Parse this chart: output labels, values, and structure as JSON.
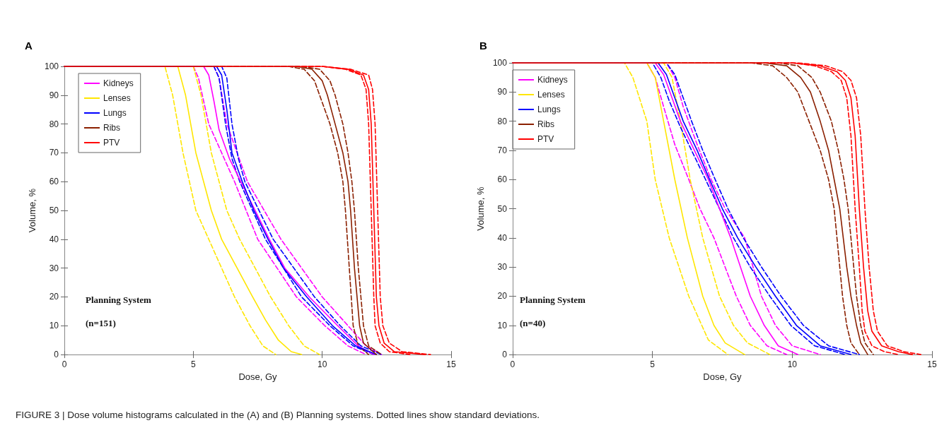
{
  "chart_data": [
    {
      "type": "line",
      "title": "A",
      "xlabel": "Dose, Gy",
      "ylabel": "Volume, %",
      "xlim": [
        0,
        15
      ],
      "xticks": [
        0,
        5,
        10,
        15
      ],
      "ylim": [
        0,
        100
      ],
      "yticks": [
        0,
        10,
        20,
        30,
        40,
        50,
        60,
        70,
        80,
        90,
        100
      ],
      "grid": false,
      "legend": "top left",
      "marker": "none",
      "line_style": "solid",
      "annotations": [
        "Planning System",
        "(n=151)",
        "FIGURE 3 | Dose volume histograms calculated in the (A) and (B) Planning systems. Dotted lines show standard deviations."
      ],
      "series": [
        {
          "name": "Kidneys",
          "color": "#ff00ff",
          "x": [
            0,
            5.4,
            5.6,
            5.8,
            6.0,
            6.4,
            6.9,
            7.4,
            7.95,
            8.55,
            9.5,
            10.6,
            11.4,
            12.0
          ],
          "values": [
            100,
            100,
            97,
            88,
            78,
            68,
            59,
            50,
            40,
            30,
            20,
            10,
            3,
            0
          ]
        },
        {
          "name": "Lenses",
          "color": "#ffe600",
          "x": [
            0,
            4.4,
            4.7,
            5.1,
            5.7,
            6.1,
            6.7,
            7.3,
            7.8,
            8.3,
            8.8,
            9.2
          ],
          "values": [
            100,
            100,
            90,
            70,
            50,
            40,
            30,
            20,
            12,
            5,
            1,
            0
          ]
        },
        {
          "name": "Lungs",
          "color": "#0000ff",
          "x": [
            0,
            5.9,
            6.1,
            6.3,
            6.5,
            6.9,
            7.35,
            7.9,
            8.5,
            9.4,
            10.4,
            11.3,
            12.1
          ],
          "values": [
            100,
            100,
            97,
            85,
            70,
            60,
            50,
            40,
            30,
            20,
            10,
            3,
            0
          ]
        },
        {
          "name": "Ribs",
          "color": "#8b2000",
          "x": [
            0,
            9.0,
            9.6,
            10.0,
            10.2,
            10.5,
            10.8,
            11.0,
            11.1,
            11.25,
            11.45,
            11.6,
            12.1
          ],
          "values": [
            100,
            100,
            99,
            95,
            90,
            80,
            70,
            60,
            50,
            30,
            10,
            4,
            0
          ]
        },
        {
          "name": "PTV",
          "color": "#ff0000",
          "x": [
            0,
            10.0,
            11.0,
            11.6,
            11.8,
            11.9,
            12.0,
            12.1,
            12.2,
            12.4,
            12.8,
            14.0
          ],
          "values": [
            100,
            100,
            99,
            97,
            92,
            80,
            50,
            20,
            10,
            4,
            1,
            0
          ]
        },
        {
          "color": "#ff00ff",
          "line_style": "dashed",
          "x": [
            0,
            5.0,
            5.2,
            5.4,
            5.6,
            6.1,
            6.6,
            7.5,
            9.0,
            10.1,
            11.0,
            11.7
          ],
          "values": [
            100,
            100,
            96,
            88,
            80,
            70,
            60,
            40,
            20,
            10,
            3,
            0
          ]
        },
        {
          "color": "#ff00ff",
          "line_style": "dashed",
          "x": [
            0,
            5.8,
            6.0,
            6.15,
            6.3,
            6.7,
            7.1,
            8.4,
            10.0,
            11.0,
            11.7,
            12.3
          ],
          "values": [
            100,
            100,
            96,
            88,
            80,
            70,
            60,
            40,
            20,
            10,
            3,
            0
          ]
        },
        {
          "color": "#ffe600",
          "line_style": "dashed",
          "x": [
            0,
            3.9,
            4.2,
            4.6,
            5.1,
            5.6,
            6.1,
            6.6,
            7.2,
            7.7,
            8.2
          ],
          "values": [
            100,
            100,
            90,
            70,
            50,
            40,
            30,
            20,
            10,
            3,
            0
          ]
        },
        {
          "color": "#ffe600",
          "line_style": "dashed",
          "x": [
            0,
            5.0,
            5.3,
            5.7,
            6.3,
            6.8,
            7.4,
            8.0,
            8.7,
            9.3,
            9.9
          ],
          "values": [
            100,
            100,
            90,
            70,
            50,
            40,
            30,
            20,
            10,
            3,
            0
          ]
        },
        {
          "color": "#0000ff",
          "line_style": "dashed",
          "x": [
            0,
            5.8,
            6.0,
            6.25,
            6.5,
            6.8,
            7.8,
            9.2,
            10.3,
            11.2,
            12.0
          ],
          "values": [
            100,
            100,
            96,
            80,
            68,
            60,
            40,
            20,
            10,
            3,
            0
          ]
        },
        {
          "color": "#0000ff",
          "line_style": "dashed",
          "x": [
            0,
            6.1,
            6.3,
            6.5,
            6.75,
            7.0,
            8.1,
            9.7,
            10.7,
            11.5,
            12.3
          ],
          "values": [
            100,
            100,
            96,
            80,
            68,
            60,
            40,
            20,
            10,
            3,
            0
          ]
        },
        {
          "color": "#8b2000",
          "line_style": "dashed",
          "x": [
            0,
            8.7,
            9.3,
            9.7,
            9.9,
            10.3,
            10.6,
            10.8,
            10.9,
            11.05,
            11.2,
            11.4,
            11.8
          ],
          "values": [
            100,
            100,
            99,
            95,
            90,
            80,
            70,
            60,
            50,
            30,
            10,
            3,
            0
          ]
        },
        {
          "color": "#8b2000",
          "line_style": "dashed",
          "x": [
            0,
            9.2,
            9.9,
            10.3,
            10.5,
            10.8,
            11.0,
            11.15,
            11.25,
            11.4,
            11.6,
            11.8,
            12.3
          ],
          "values": [
            100,
            100,
            99,
            95,
            90,
            80,
            70,
            60,
            50,
            30,
            10,
            3,
            0
          ]
        },
        {
          "color": "#ff0000",
          "line_style": "dashed",
          "x": [
            0,
            10.0,
            10.9,
            11.5,
            11.7,
            11.8,
            11.9,
            12.0,
            12.05,
            12.25,
            12.6,
            13.4
          ],
          "values": [
            100,
            100,
            99,
            97,
            92,
            80,
            50,
            20,
            10,
            4,
            1,
            0
          ]
        },
        {
          "color": "#ff0000",
          "line_style": "dashed",
          "x": [
            0,
            10.0,
            11.1,
            11.8,
            11.95,
            12.05,
            12.15,
            12.25,
            12.35,
            12.6,
            13.1,
            14.2
          ],
          "values": [
            100,
            100,
            99,
            97,
            92,
            80,
            50,
            20,
            10,
            4,
            1,
            0
          ]
        }
      ]
    },
    {
      "type": "line",
      "title": "B",
      "xlabel": "Dose, Gy",
      "ylabel": "Volume, %",
      "xlim": [
        0,
        15
      ],
      "xticks": [
        0,
        5,
        10,
        15
      ],
      "ylim": [
        0,
        100
      ],
      "yticks": [
        0,
        10,
        20,
        30,
        40,
        50,
        60,
        70,
        80,
        90,
        100
      ],
      "grid": false,
      "legend": "top left",
      "marker": "none",
      "line_style": "solid",
      "annotations": [
        "Planning System",
        "(n=40)"
      ],
      "series": [
        {
          "name": "Kidneys",
          "color": "#ff00ff",
          "x": [
            0,
            5.1,
            5.4,
            5.7,
            6.0,
            6.5,
            7.0,
            7.4,
            7.8,
            8.15,
            8.5,
            9.0,
            9.5,
            10.2
          ],
          "values": [
            100,
            100,
            96,
            88,
            80,
            70,
            60,
            50,
            40,
            30,
            20,
            10,
            3,
            0
          ]
        },
        {
          "name": "Lenses",
          "color": "#ffe600",
          "x": [
            0,
            4.8,
            5.1,
            5.4,
            5.8,
            6.25,
            6.8,
            7.2,
            7.6,
            8.3
          ],
          "values": [
            100,
            100,
            95,
            80,
            60,
            40,
            20,
            10,
            4,
            0
          ]
        },
        {
          "name": "Lungs",
          "color": "#0000ff",
          "x": [
            0,
            5.2,
            5.5,
            5.8,
            6.1,
            6.6,
            7.0,
            7.5,
            8.05,
            8.7,
            9.4,
            10.15,
            11.0,
            12.1
          ],
          "values": [
            100,
            100,
            96,
            88,
            80,
            70,
            61,
            50,
            40,
            30,
            20,
            10,
            3,
            0
          ]
        },
        {
          "name": "Ribs",
          "color": "#8b2000",
          "x": [
            0,
            9.0,
            9.8,
            10.3,
            10.65,
            11.0,
            11.3,
            11.5,
            11.7,
            11.95,
            12.1,
            12.3,
            12.45,
            12.7
          ],
          "values": [
            100,
            100,
            99,
            95,
            90,
            80,
            70,
            60,
            50,
            30,
            20,
            10,
            4,
            0
          ]
        },
        {
          "name": "PTV",
          "color": "#ff0000",
          "x": [
            0,
            10.0,
            11.0,
            11.6,
            11.9,
            12.1,
            12.25,
            12.4,
            12.55,
            12.7,
            12.85,
            13.2,
            13.8,
            14.3
          ],
          "values": [
            100,
            100,
            99,
            97,
            94,
            88,
            75,
            50,
            30,
            15,
            8,
            3,
            1,
            0
          ]
        },
        {
          "color": "#ff00ff",
          "line_style": "dashed",
          "x": [
            0,
            4.8,
            5.1,
            5.4,
            5.8,
            6.3,
            6.7,
            7.2,
            7.6,
            8.0,
            8.5,
            9.1,
            9.8
          ],
          "values": [
            100,
            100,
            95,
            85,
            72,
            60,
            50,
            40,
            30,
            20,
            10,
            3,
            0
          ]
        },
        {
          "color": "#ff00ff",
          "line_style": "dashed",
          "x": [
            0,
            5.5,
            5.8,
            6.1,
            6.6,
            7.1,
            7.6,
            8.3,
            8.6,
            8.9,
            9.4,
            10.0,
            11.0
          ],
          "values": [
            100,
            100,
            95,
            85,
            72,
            60,
            50,
            40,
            30,
            20,
            10,
            3,
            0
          ]
        },
        {
          "color": "#ffe600",
          "line_style": "dashed",
          "x": [
            0,
            4.0,
            4.3,
            4.8,
            5.1,
            5.6,
            6.3,
            7.0,
            7.7
          ],
          "values": [
            100,
            100,
            95,
            80,
            60,
            40,
            20,
            5,
            0
          ]
        },
        {
          "color": "#ffe600",
          "line_style": "dashed",
          "x": [
            0,
            5.4,
            5.7,
            6.0,
            6.35,
            6.8,
            7.4,
            7.9,
            8.4,
            9.2
          ],
          "values": [
            100,
            100,
            95,
            80,
            60,
            40,
            20,
            10,
            4,
            0
          ]
        },
        {
          "color": "#0000ff",
          "line_style": "dashed",
          "x": [
            0,
            5.0,
            5.3,
            5.6,
            6.0,
            6.5,
            6.9,
            7.4,
            7.9,
            8.5,
            9.2,
            9.95,
            10.8,
            11.9
          ],
          "values": [
            100,
            100,
            95,
            87,
            78,
            68,
            60,
            50,
            40,
            30,
            20,
            10,
            3,
            0
          ]
        },
        {
          "color": "#0000ff",
          "line_style": "dashed",
          "x": [
            0,
            5.5,
            5.8,
            6.1,
            6.4,
            6.8,
            7.2,
            7.7,
            8.25,
            8.9,
            9.6,
            10.4,
            11.3,
            12.4
          ],
          "values": [
            100,
            100,
            96,
            88,
            80,
            70,
            61,
            50,
            40,
            30,
            20,
            10,
            3,
            0
          ]
        },
        {
          "color": "#8b2000",
          "line_style": "dashed",
          "x": [
            0,
            8.5,
            9.3,
            9.8,
            10.2,
            10.6,
            11.0,
            11.3,
            11.5,
            11.7,
            11.8,
            11.95,
            12.1,
            12.4
          ],
          "values": [
            100,
            100,
            99,
            95,
            90,
            80,
            70,
            60,
            50,
            30,
            20,
            10,
            4,
            0
          ]
        },
        {
          "color": "#8b2000",
          "line_style": "dashed",
          "x": [
            0,
            9.5,
            10.2,
            10.7,
            11.0,
            11.4,
            11.65,
            11.85,
            12.0,
            12.2,
            12.3,
            12.45,
            12.6,
            12.9
          ],
          "values": [
            100,
            100,
            99,
            95,
            90,
            80,
            70,
            60,
            50,
            30,
            20,
            10,
            4,
            0
          ]
        },
        {
          "color": "#ff0000",
          "line_style": "dashed",
          "x": [
            0,
            10.0,
            10.8,
            11.4,
            11.75,
            11.95,
            12.1,
            12.25,
            12.4,
            12.5,
            12.6,
            12.85,
            13.3,
            13.8
          ],
          "values": [
            100,
            100,
            99,
            97,
            94,
            88,
            75,
            50,
            30,
            15,
            8,
            3,
            1,
            0
          ]
        },
        {
          "color": "#ff0000",
          "line_style": "dashed",
          "x": [
            0,
            10.2,
            11.2,
            11.8,
            12.1,
            12.3,
            12.45,
            12.6,
            12.75,
            12.9,
            13.05,
            13.4,
            14.0,
            14.6
          ],
          "values": [
            100,
            100,
            99,
            97,
            94,
            88,
            75,
            50,
            30,
            15,
            8,
            3,
            1,
            0
          ]
        }
      ]
    }
  ]
}
